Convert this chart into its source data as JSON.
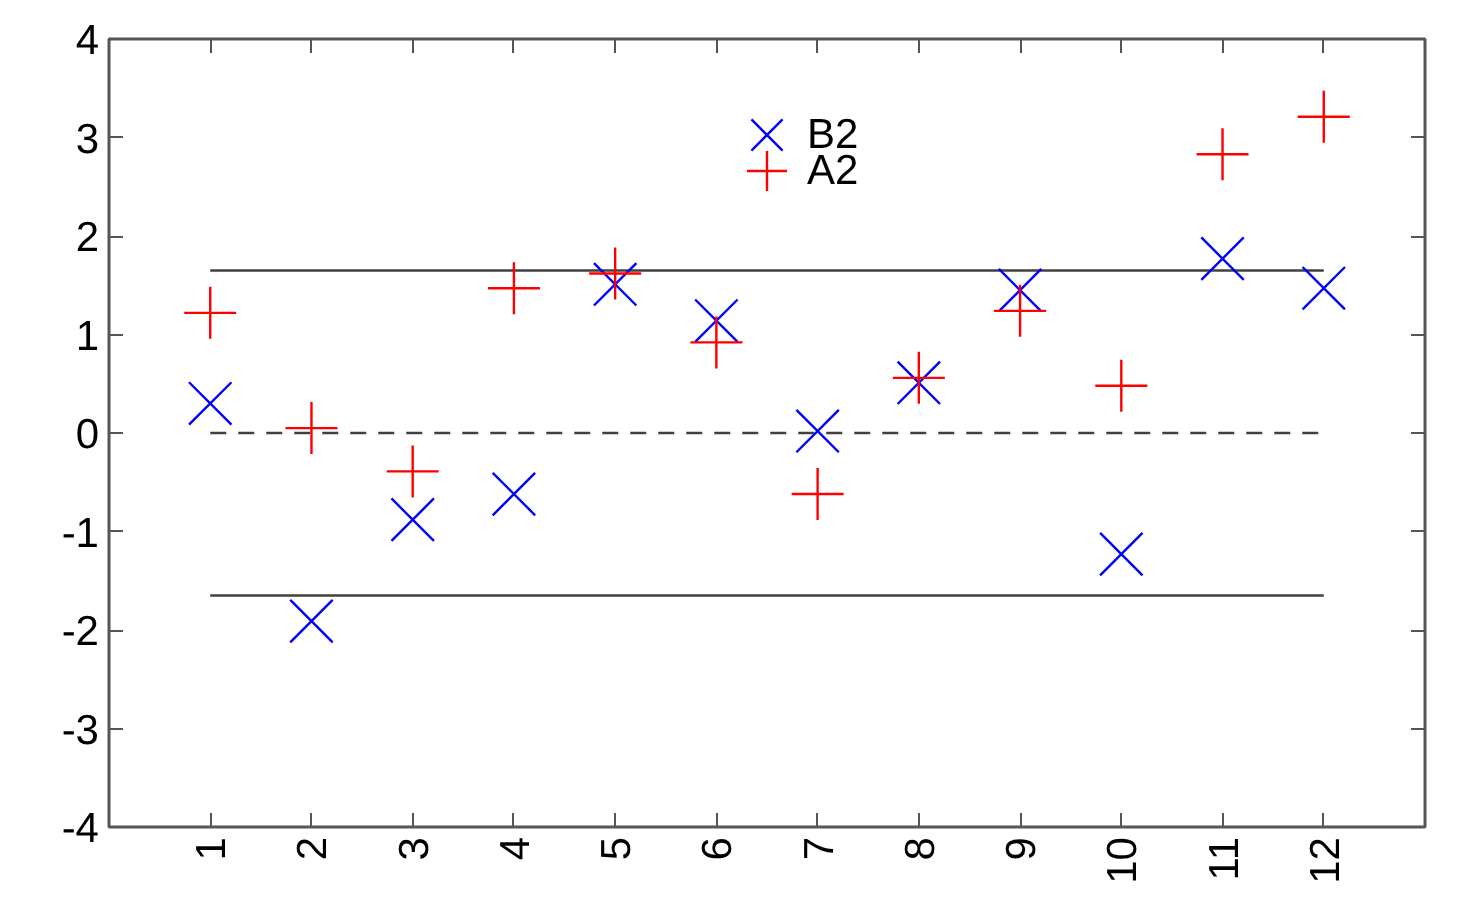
{
  "chart_data": {
    "type": "scatter",
    "categories": [
      "1",
      "2",
      "3",
      "4",
      "5",
      "6",
      "7",
      "8",
      "9",
      "10",
      "11",
      "12"
    ],
    "series": [
      {
        "name": "B2",
        "color": "#0000ff",
        "marker": "x",
        "values": [
          0.3,
          -1.91,
          -0.88,
          -0.62,
          1.51,
          1.14,
          0.02,
          0.51,
          1.45,
          -1.23,
          1.77,
          1.47
        ]
      },
      {
        "name": "A2",
        "color": "#ff0000",
        "marker": "cross",
        "values": [
          1.22,
          0.05,
          -0.39,
          1.47,
          1.62,
          0.92,
          -0.62,
          0.56,
          1.24,
          0.48,
          2.83,
          3.21
        ]
      }
    ],
    "ylim": [
      -4,
      4
    ],
    "yticks": [
      -4,
      -3,
      -2,
      -1,
      0,
      1,
      2,
      3,
      4
    ],
    "ref_lines": [
      {
        "axis": "y",
        "value": 1.65,
        "color": "#404040",
        "line_style": "solid"
      },
      {
        "axis": "y",
        "value": 0,
        "color": "#404040",
        "line_style": "dashed"
      },
      {
        "axis": "y",
        "value": -1.65,
        "color": "#404040",
        "line_style": "solid"
      }
    ],
    "grid": false,
    "legend": "top"
  }
}
